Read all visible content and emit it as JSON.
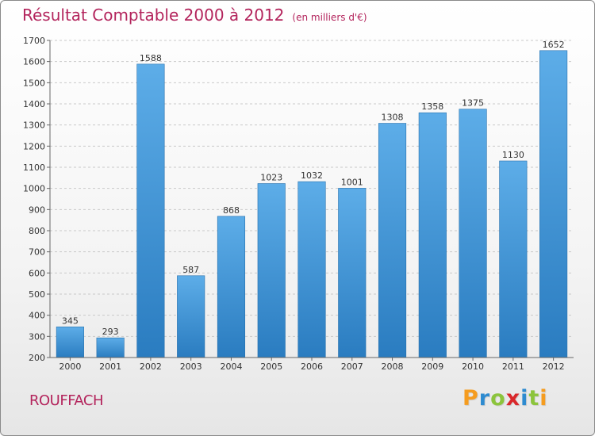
{
  "chart_data": {
    "type": "bar",
    "title": "Résultat Comptable 2000 à 2012",
    "subtitle": "(en milliers d'€)",
    "categories": [
      "2000",
      "2001",
      "2002",
      "2003",
      "2004",
      "2005",
      "2006",
      "2007",
      "2008",
      "2009",
      "2010",
      "2011",
      "2012"
    ],
    "values": [
      345,
      293,
      1588,
      587,
      868,
      1023,
      1032,
      1001,
      1308,
      1358,
      1375,
      1130,
      1652
    ],
    "ylim": [
      200,
      1700
    ],
    "yticks": [
      200,
      300,
      400,
      500,
      600,
      700,
      800,
      900,
      1000,
      1100,
      1200,
      1300,
      1400,
      1500,
      1600,
      1700
    ],
    "xlabel": "",
    "ylabel": "",
    "grid": true,
    "colors": {
      "bar_light": "#5dade8",
      "bar_dark": "#2a7cc0",
      "bar_edge": "#2670ad"
    }
  },
  "town": "ROUFFACH",
  "logo": {
    "letters": [
      "P",
      "r",
      "o",
      "x",
      "i",
      "t",
      "i"
    ],
    "colors": [
      "#f59c1f",
      "#2e8bd0",
      "#8cc43c",
      "#d9282b",
      "#2e8bd0",
      "#8cc43c",
      "#f59c1f"
    ]
  }
}
